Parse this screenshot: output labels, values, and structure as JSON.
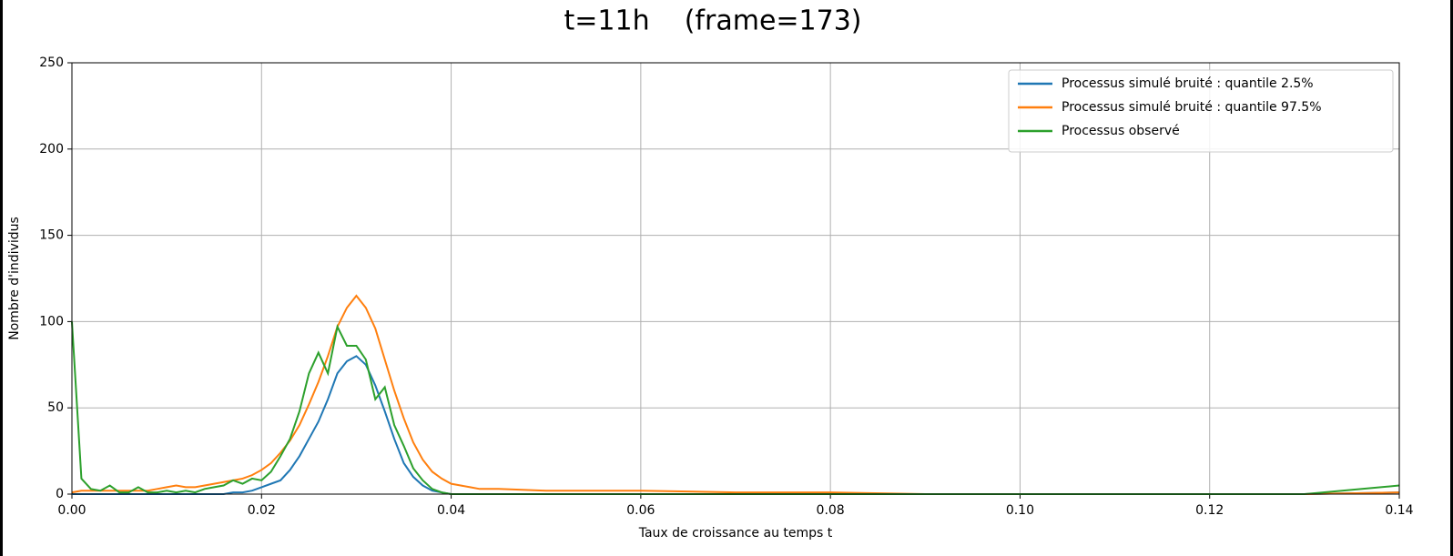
{
  "chart_data": {
    "type": "line",
    "title": "t=11h    (frame=173)",
    "x_label": "Taux de croissance au temps t",
    "y_label": "Nombre d'individus",
    "x": [
      0,
      0.001,
      0.002,
      0.003,
      0.004,
      0.005,
      0.006,
      0.007,
      0.008,
      0.009,
      0.01,
      0.011,
      0.012,
      0.013,
      0.014,
      0.015,
      0.016,
      0.017,
      0.018,
      0.019,
      0.02,
      0.021,
      0.022,
      0.023,
      0.024,
      0.025,
      0.026,
      0.027,
      0.028,
      0.029,
      0.03,
      0.031,
      0.032,
      0.033,
      0.034,
      0.035,
      0.036,
      0.037,
      0.038,
      0.039,
      0.04,
      0.041,
      0.042,
      0.043,
      0.044,
      0.045,
      0.05,
      0.06,
      0.07,
      0.08,
      0.09,
      0.1,
      0.11,
      0.12,
      0.13,
      0.14
    ],
    "series": [
      {
        "name": "Processus simulé bruité : quantile 2.5%",
        "color": "#1f77b4",
        "values": [
          0,
          0,
          0,
          0,
          0,
          0,
          0,
          0,
          0,
          0,
          0,
          0,
          0,
          0,
          0,
          0,
          0,
          1,
          1,
          2,
          4,
          6,
          8,
          14,
          22,
          32,
          42,
          55,
          70,
          77,
          80,
          75,
          63,
          48,
          32,
          18,
          10,
          5,
          2,
          1,
          0,
          0,
          0,
          0,
          0,
          0,
          0,
          0,
          0,
          0,
          0,
          0,
          0,
          0,
          0,
          1
        ]
      },
      {
        "name": "Processus simulé bruité : quantile 97.5%",
        "color": "#ff7f0e",
        "values": [
          1,
          2,
          2,
          2,
          2,
          2,
          2,
          2,
          2,
          3,
          4,
          5,
          4,
          4,
          5,
          6,
          7,
          8,
          9,
          11,
          14,
          18,
          24,
          31,
          40,
          52,
          65,
          80,
          97,
          108,
          115,
          108,
          96,
          78,
          60,
          44,
          30,
          20,
          13,
          9,
          6,
          5,
          4,
          3,
          3,
          3,
          2,
          2,
          1,
          1,
          0,
          0,
          0,
          0,
          0,
          1
        ]
      },
      {
        "name": "Processus observé",
        "color": "#2ca02c",
        "values": [
          100,
          9,
          3,
          2,
          5,
          1,
          1,
          4,
          1,
          1,
          2,
          1,
          2,
          1,
          3,
          4,
          5,
          8,
          6,
          9,
          8,
          13,
          22,
          32,
          48,
          70,
          82,
          70,
          97,
          86,
          86,
          78,
          55,
          62,
          40,
          28,
          15,
          8,
          3,
          1,
          0,
          0,
          0,
          0,
          0,
          0,
          0,
          0,
          0,
          0,
          0,
          0,
          0,
          0,
          0,
          5
        ]
      }
    ],
    "xlim": [
      0,
      0.14
    ],
    "ylim": [
      0,
      250
    ],
    "xticks": [
      {
        "value": 0,
        "label": "0.00"
      },
      {
        "value": 0.02,
        "label": "0.02"
      },
      {
        "value": 0.04,
        "label": "0.04"
      },
      {
        "value": 0.06,
        "label": "0.06"
      },
      {
        "value": 0.08,
        "label": "0.08"
      },
      {
        "value": 0.1,
        "label": "0.10"
      },
      {
        "value": 0.12,
        "label": "0.12"
      },
      {
        "value": 0.14,
        "label": "0.14"
      }
    ],
    "yticks": [
      0,
      50,
      100,
      150,
      200,
      250
    ],
    "grid": true,
    "legend": "upper-right"
  }
}
